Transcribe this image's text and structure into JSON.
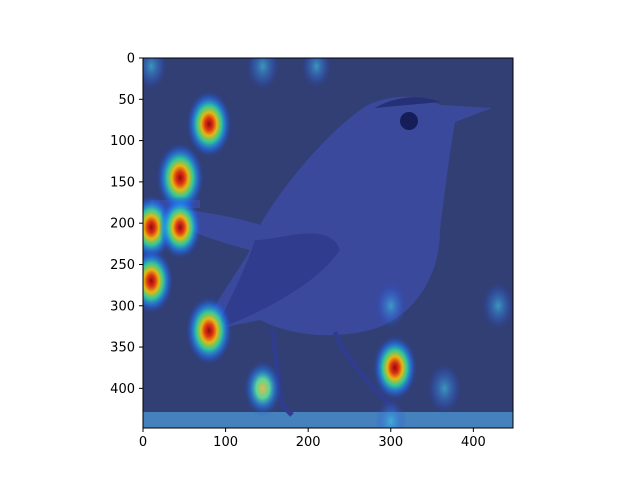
{
  "chart_data": {
    "type": "heatmap",
    "title": "",
    "xlabel": "",
    "ylabel": "",
    "xlim": [
      0,
      448
    ],
    "ylim": [
      448,
      0
    ],
    "x_ticks": [
      0,
      100,
      200,
      300,
      400
    ],
    "y_ticks": [
      0,
      50,
      100,
      150,
      200,
      250,
      300,
      350,
      400
    ],
    "colormap": "jet",
    "background_subject": "bird-photo",
    "overlay_alpha": 0.5,
    "hotspots": [
      {
        "x": 10,
        "y": 10,
        "intensity": 0.35
      },
      {
        "x": 145,
        "y": 10,
        "intensity": 0.4
      },
      {
        "x": 210,
        "y": 10,
        "intensity": 0.25
      },
      {
        "x": 80,
        "y": 80,
        "intensity": 0.9
      },
      {
        "x": 45,
        "y": 145,
        "intensity": 1.0
      },
      {
        "x": 10,
        "y": 205,
        "intensity": 0.85
      },
      {
        "x": 45,
        "y": 205,
        "intensity": 0.8
      },
      {
        "x": 10,
        "y": 270,
        "intensity": 0.85
      },
      {
        "x": 80,
        "y": 330,
        "intensity": 0.95
      },
      {
        "x": 300,
        "y": 300,
        "intensity": 0.35
      },
      {
        "x": 430,
        "y": 300,
        "intensity": 0.35
      },
      {
        "x": 305,
        "y": 375,
        "intensity": 0.85
      },
      {
        "x": 145,
        "y": 400,
        "intensity": 0.6
      },
      {
        "x": 365,
        "y": 400,
        "intensity": 0.45
      },
      {
        "x": 300,
        "y": 440,
        "intensity": 0.3
      }
    ]
  },
  "colors": {
    "base": "#1f2a8a",
    "photo_sky": "#3c4a6a",
    "bird_body": "#4a5aa8",
    "bird_dark": "#2a346e"
  }
}
